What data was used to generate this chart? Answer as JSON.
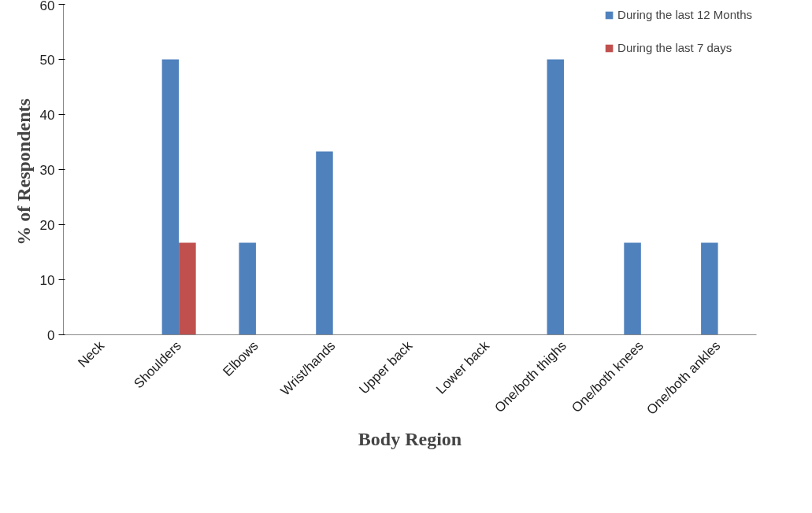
{
  "chart_data": {
    "type": "bar",
    "xlabel": "Body Region",
    "ylabel": "%  of Respondents",
    "categories": [
      "Neck",
      "Shoulders",
      "Elbows",
      "Wrist/hands",
      "Upper back",
      "Lower back",
      "One/both thighs",
      "One/both knees",
      "One/both ankles"
    ],
    "series": [
      {
        "name": "During the last 12 Months",
        "color": "#4f81bd",
        "values": [
          0,
          50,
          16.7,
          33.3,
          0,
          0,
          50,
          16.7,
          16.7
        ]
      },
      {
        "name": "During the last 7 days",
        "color": "#c0504d",
        "values": [
          0,
          16.7,
          0,
          0,
          0,
          0,
          0,
          0,
          0
        ]
      }
    ],
    "ylim": [
      0,
      60
    ],
    "yticks": [
      0,
      10,
      20,
      30,
      40,
      50,
      60
    ],
    "grid": false,
    "legend": "top right"
  }
}
